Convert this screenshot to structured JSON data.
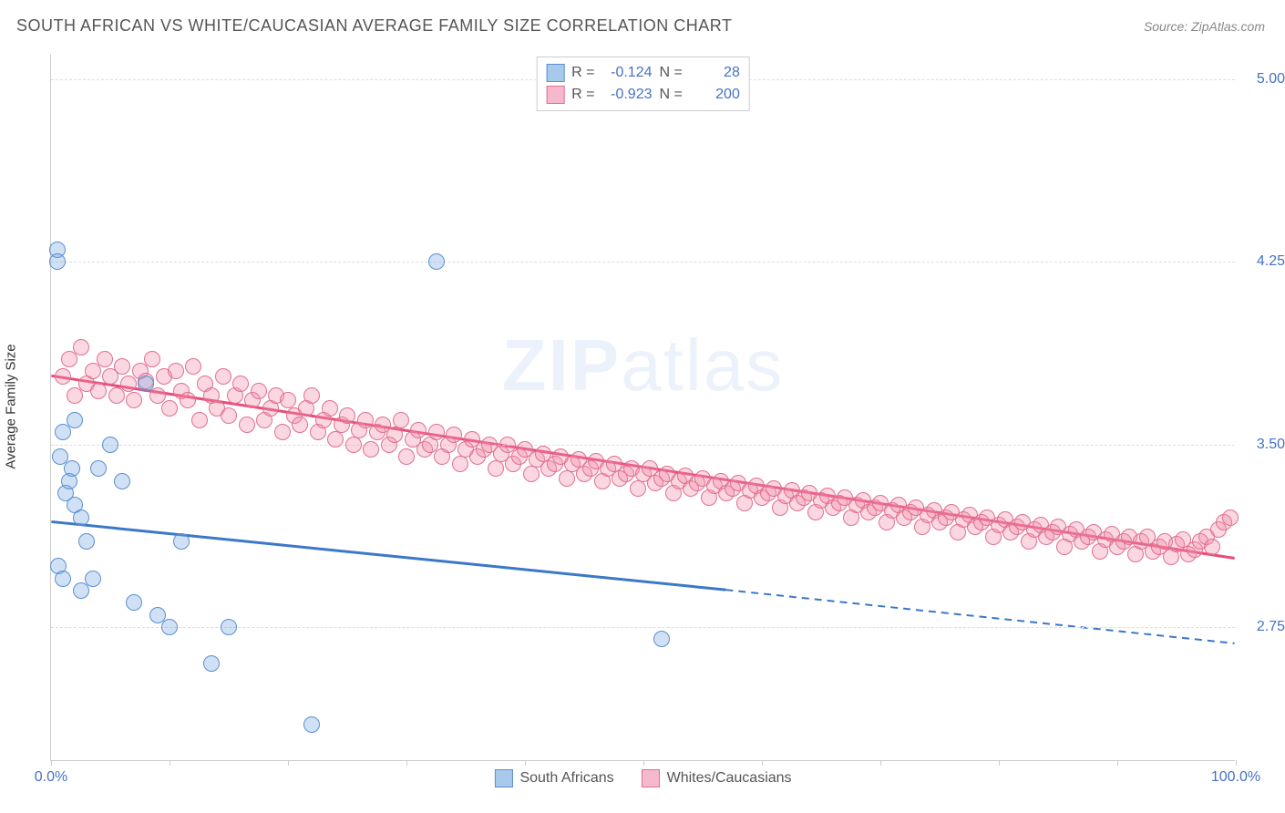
{
  "header": {
    "title": "SOUTH AFRICAN VS WHITE/CAUCASIAN AVERAGE FAMILY SIZE CORRELATION CHART",
    "source_prefix": "Source: ",
    "source_name": "ZipAtlas.com"
  },
  "chart": {
    "type": "scatter",
    "watermark": "ZIPatlas",
    "y_axis_label": "Average Family Size",
    "background_color": "#ffffff",
    "grid_color": "#dddddd",
    "axis_color": "#cccccc",
    "tick_label_color": "#4472c4",
    "xlim": [
      0,
      100
    ],
    "ylim": [
      2.2,
      5.1
    ],
    "y_ticks": [
      2.75,
      3.5,
      4.25,
      5.0
    ],
    "y_tick_labels": [
      "2.75",
      "3.50",
      "4.25",
      "5.00"
    ],
    "x_ticks": [
      0,
      10,
      20,
      30,
      40,
      50,
      60,
      70,
      80,
      90,
      100
    ],
    "x_tick_labels": {
      "0": "0.0%",
      "100": "100.0%"
    },
    "point_radius": 9,
    "point_stroke_width": 1.5,
    "series": [
      {
        "key": "south_africans",
        "label": "South Africans",
        "fill_color": "rgba(120, 170, 230, 0.35)",
        "stroke_color": "#5a8fd0",
        "legend_fill": "#a8c8ec",
        "legend_stroke": "#5a8fd0",
        "R": "-0.124",
        "N": "28",
        "trend": {
          "x1": 0,
          "y1": 3.18,
          "x2_solid": 57,
          "y2_solid": 2.9,
          "x2": 100,
          "y2": 2.68,
          "color": "#3a78c8",
          "width": 3
        },
        "points": [
          [
            0.5,
            4.3
          ],
          [
            0.5,
            4.25
          ],
          [
            0.8,
            3.45
          ],
          [
            1.0,
            3.55
          ],
          [
            1.2,
            3.3
          ],
          [
            1.5,
            3.35
          ],
          [
            1.8,
            3.4
          ],
          [
            2.0,
            3.25
          ],
          [
            2.0,
            3.6
          ],
          [
            2.5,
            3.2
          ],
          [
            0.6,
            3.0
          ],
          [
            1.0,
            2.95
          ],
          [
            2.5,
            2.9
          ],
          [
            3.0,
            3.1
          ],
          [
            3.5,
            2.95
          ],
          [
            4.0,
            3.4
          ],
          [
            5.0,
            3.5
          ],
          [
            6.0,
            3.35
          ],
          [
            7.0,
            2.85
          ],
          [
            8.0,
            3.75
          ],
          [
            9.0,
            2.8
          ],
          [
            10.0,
            2.75
          ],
          [
            11.0,
            3.1
          ],
          [
            13.5,
            2.6
          ],
          [
            15.0,
            2.75
          ],
          [
            22.0,
            2.35
          ],
          [
            32.5,
            4.25
          ],
          [
            51.5,
            2.7
          ]
        ]
      },
      {
        "key": "whites_caucasians",
        "label": "Whites/Caucasians",
        "fill_color": "rgba(240, 140, 170, 0.35)",
        "stroke_color": "#e07090",
        "legend_fill": "#f5b8cc",
        "legend_stroke": "#e07090",
        "R": "-0.923",
        "N": "200",
        "trend": {
          "x1": 0,
          "y1": 3.78,
          "x2_solid": 100,
          "y2_solid": 3.03,
          "x2": 100,
          "y2": 3.03,
          "color": "#e84c7a",
          "width": 3
        },
        "points": [
          [
            1,
            3.78
          ],
          [
            1.5,
            3.85
          ],
          [
            2,
            3.7
          ],
          [
            2.5,
            3.9
          ],
          [
            3,
            3.75
          ],
          [
            3.5,
            3.8
          ],
          [
            4,
            3.72
          ],
          [
            4.5,
            3.85
          ],
          [
            5,
            3.78
          ],
          [
            5.5,
            3.7
          ],
          [
            6,
            3.82
          ],
          [
            6.5,
            3.75
          ],
          [
            7,
            3.68
          ],
          [
            7.5,
            3.8
          ],
          [
            8,
            3.76
          ],
          [
            8.5,
            3.85
          ],
          [
            9,
            3.7
          ],
          [
            9.5,
            3.78
          ],
          [
            10,
            3.65
          ],
          [
            10.5,
            3.8
          ],
          [
            11,
            3.72
          ],
          [
            11.5,
            3.68
          ],
          [
            12,
            3.82
          ],
          [
            12.5,
            3.6
          ],
          [
            13,
            3.75
          ],
          [
            13.5,
            3.7
          ],
          [
            14,
            3.65
          ],
          [
            14.5,
            3.78
          ],
          [
            15,
            3.62
          ],
          [
            15.5,
            3.7
          ],
          [
            16,
            3.75
          ],
          [
            16.5,
            3.58
          ],
          [
            17,
            3.68
          ],
          [
            17.5,
            3.72
          ],
          [
            18,
            3.6
          ],
          [
            18.5,
            3.65
          ],
          [
            19,
            3.7
          ],
          [
            19.5,
            3.55
          ],
          [
            20,
            3.68
          ],
          [
            20.5,
            3.62
          ],
          [
            21,
            3.58
          ],
          [
            21.5,
            3.65
          ],
          [
            22,
            3.7
          ],
          [
            22.5,
            3.55
          ],
          [
            23,
            3.6
          ],
          [
            23.5,
            3.65
          ],
          [
            24,
            3.52
          ],
          [
            24.5,
            3.58
          ],
          [
            25,
            3.62
          ],
          [
            25.5,
            3.5
          ],
          [
            26,
            3.56
          ],
          [
            26.5,
            3.6
          ],
          [
            27,
            3.48
          ],
          [
            27.5,
            3.55
          ],
          [
            28,
            3.58
          ],
          [
            28.5,
            3.5
          ],
          [
            29,
            3.54
          ],
          [
            29.5,
            3.6
          ],
          [
            30,
            3.45
          ],
          [
            30.5,
            3.52
          ],
          [
            31,
            3.56
          ],
          [
            31.5,
            3.48
          ],
          [
            32,
            3.5
          ],
          [
            32.5,
            3.55
          ],
          [
            33,
            3.45
          ],
          [
            33.5,
            3.5
          ],
          [
            34,
            3.54
          ],
          [
            34.5,
            3.42
          ],
          [
            35,
            3.48
          ],
          [
            35.5,
            3.52
          ],
          [
            36,
            3.45
          ],
          [
            36.5,
            3.48
          ],
          [
            37,
            3.5
          ],
          [
            37.5,
            3.4
          ],
          [
            38,
            3.46
          ],
          [
            38.5,
            3.5
          ],
          [
            39,
            3.42
          ],
          [
            39.5,
            3.45
          ],
          [
            40,
            3.48
          ],
          [
            40.5,
            3.38
          ],
          [
            41,
            3.44
          ],
          [
            41.5,
            3.46
          ],
          [
            42,
            3.4
          ],
          [
            42.5,
            3.42
          ],
          [
            43,
            3.45
          ],
          [
            43.5,
            3.36
          ],
          [
            44,
            3.42
          ],
          [
            44.5,
            3.44
          ],
          [
            45,
            3.38
          ],
          [
            45.5,
            3.4
          ],
          [
            46,
            3.43
          ],
          [
            46.5,
            3.35
          ],
          [
            47,
            3.4
          ],
          [
            47.5,
            3.42
          ],
          [
            48,
            3.36
          ],
          [
            48.5,
            3.38
          ],
          [
            49,
            3.4
          ],
          [
            49.5,
            3.32
          ],
          [
            50,
            3.38
          ],
          [
            50.5,
            3.4
          ],
          [
            51,
            3.34
          ],
          [
            51.5,
            3.36
          ],
          [
            52,
            3.38
          ],
          [
            52.5,
            3.3
          ],
          [
            53,
            3.35
          ],
          [
            53.5,
            3.37
          ],
          [
            54,
            3.32
          ],
          [
            54.5,
            3.34
          ],
          [
            55,
            3.36
          ],
          [
            55.5,
            3.28
          ],
          [
            56,
            3.33
          ],
          [
            56.5,
            3.35
          ],
          [
            57,
            3.3
          ],
          [
            57.5,
            3.32
          ],
          [
            58,
            3.34
          ],
          [
            58.5,
            3.26
          ],
          [
            59,
            3.31
          ],
          [
            59.5,
            3.33
          ],
          [
            60,
            3.28
          ],
          [
            60.5,
            3.3
          ],
          [
            61,
            3.32
          ],
          [
            61.5,
            3.24
          ],
          [
            62,
            3.29
          ],
          [
            62.5,
            3.31
          ],
          [
            63,
            3.26
          ],
          [
            63.5,
            3.28
          ],
          [
            64,
            3.3
          ],
          [
            64.5,
            3.22
          ],
          [
            65,
            3.27
          ],
          [
            65.5,
            3.29
          ],
          [
            66,
            3.24
          ],
          [
            66.5,
            3.26
          ],
          [
            67,
            3.28
          ],
          [
            67.5,
            3.2
          ],
          [
            68,
            3.25
          ],
          [
            68.5,
            3.27
          ],
          [
            69,
            3.22
          ],
          [
            69.5,
            3.24
          ],
          [
            70,
            3.26
          ],
          [
            70.5,
            3.18
          ],
          [
            71,
            3.23
          ],
          [
            71.5,
            3.25
          ],
          [
            72,
            3.2
          ],
          [
            72.5,
            3.22
          ],
          [
            73,
            3.24
          ],
          [
            73.5,
            3.16
          ],
          [
            74,
            3.21
          ],
          [
            74.5,
            3.23
          ],
          [
            75,
            3.18
          ],
          [
            75.5,
            3.2
          ],
          [
            76,
            3.22
          ],
          [
            76.5,
            3.14
          ],
          [
            77,
            3.19
          ],
          [
            77.5,
            3.21
          ],
          [
            78,
            3.16
          ],
          [
            78.5,
            3.18
          ],
          [
            79,
            3.2
          ],
          [
            79.5,
            3.12
          ],
          [
            80,
            3.17
          ],
          [
            80.5,
            3.19
          ],
          [
            81,
            3.14
          ],
          [
            81.5,
            3.16
          ],
          [
            82,
            3.18
          ],
          [
            82.5,
            3.1
          ],
          [
            83,
            3.15
          ],
          [
            83.5,
            3.17
          ],
          [
            84,
            3.12
          ],
          [
            84.5,
            3.14
          ],
          [
            85,
            3.16
          ],
          [
            85.5,
            3.08
          ],
          [
            86,
            3.13
          ],
          [
            86.5,
            3.15
          ],
          [
            87,
            3.1
          ],
          [
            87.5,
            3.12
          ],
          [
            88,
            3.14
          ],
          [
            88.5,
            3.06
          ],
          [
            89,
            3.11
          ],
          [
            89.5,
            3.13
          ],
          [
            90,
            3.08
          ],
          [
            90.5,
            3.1
          ],
          [
            91,
            3.12
          ],
          [
            91.5,
            3.05
          ],
          [
            92,
            3.1
          ],
          [
            92.5,
            3.12
          ],
          [
            93,
            3.06
          ],
          [
            93.5,
            3.08
          ],
          [
            94,
            3.1
          ],
          [
            94.5,
            3.04
          ],
          [
            95,
            3.09
          ],
          [
            95.5,
            3.11
          ],
          [
            96,
            3.05
          ],
          [
            96.5,
            3.07
          ],
          [
            97,
            3.1
          ],
          [
            97.5,
            3.12
          ],
          [
            98,
            3.08
          ],
          [
            98.5,
            3.15
          ],
          [
            99,
            3.18
          ],
          [
            99.5,
            3.2
          ]
        ]
      }
    ]
  },
  "legend_top": {
    "r_label": "R =",
    "n_label": "N ="
  }
}
